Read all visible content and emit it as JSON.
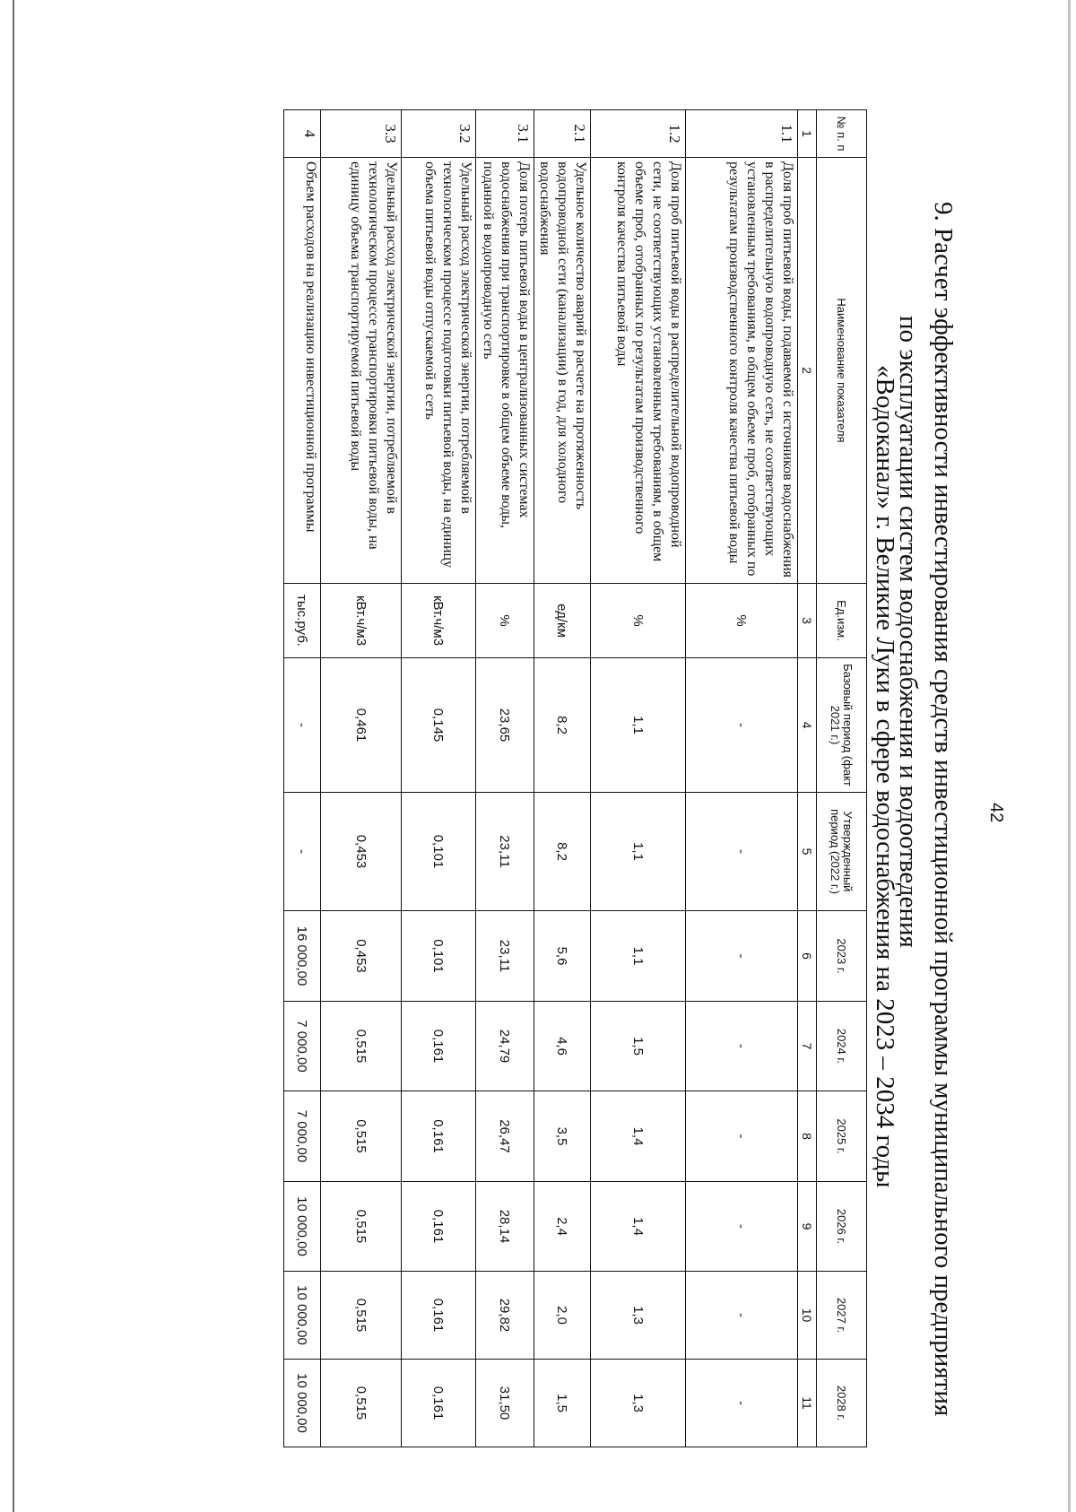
{
  "page_number": "42",
  "title": {
    "line1": "9. Расчет эффективности инвестирования средств инвестиционной программы муниципального предприятия",
    "line2": "по эксплуатации систем водоснабжения и водоотведения",
    "line3": "«Водоканал» г. Великие Луки в сфере водоснабжения на 2023 – 2034 годы"
  },
  "table": {
    "headers": [
      "№ п. п",
      "Наименование показателя",
      "Ед.изм.",
      "Базовый период (факт 2021 г.)",
      "Утвержденный период (2022 г.)",
      "2023 г.",
      "2024 г.",
      "2025 г.",
      "2026 г.",
      "2027 г.",
      "2028 г."
    ],
    "column_numbers": [
      "1",
      "2",
      "3",
      "4",
      "5",
      "6",
      "7",
      "8",
      "9",
      "10",
      "11"
    ],
    "rows": [
      {
        "no": "1.1",
        "name": "Доля проб питьевой воды, подаваемой с источников водоснабжения в распределительную водопроводную сеть, не соответствующих установленным требованиям, в общем объеме проб, отобранных по результатам производственного контроля качества питьевой воды",
        "unit": "%",
        "values": [
          "-",
          "-",
          "-",
          "-",
          "-",
          "-",
          "-",
          "-"
        ]
      },
      {
        "no": "1.2",
        "name": "Доля проб питьевой воды в распределительной водопроводной сети, не соответствующих установленным требованиям, в общем объеме проб, отобранных по результатам производственного контроля качества питьевой воды",
        "unit": "%",
        "values": [
          "1,1",
          "1,1",
          "1,1",
          "1,5",
          "1,4",
          "1,4",
          "1,3",
          "1,3"
        ]
      },
      {
        "no": "2.1",
        "name": "Удельное количество аварий в расчете на протяженность водопроводной сети (канализации) в год, для холодного водоснабжения",
        "unit": "ед/км",
        "values": [
          "8,2",
          "8,2",
          "5,6",
          "4,6",
          "3,5",
          "2,4",
          "2,0",
          "1,5"
        ]
      },
      {
        "no": "3.1",
        "name": "Доля потерь питьевой воды в централизованных системах водоснабжения при транспортировке в общем объеме воды, поданной в водопроводную сеть",
        "unit": "%",
        "values": [
          "23,65",
          "23,11",
          "23,11",
          "24,79",
          "26,47",
          "28,14",
          "29,82",
          "31,50"
        ]
      },
      {
        "no": "3.2",
        "name": "Удельный расход электрической энергии, потребляемой в технологическом процессе подготовки питьевой воды, на единицу объема питьевой воды отпускаемой в сеть",
        "unit": "кВт.ч/м3",
        "values": [
          "0,145",
          "0,101",
          "0,101",
          "0,161",
          "0,161",
          "0,161",
          "0,161",
          "0,161"
        ]
      },
      {
        "no": "3.3",
        "name": "Удельный расход электрической энергии, потребляемой в технологическом процессе транспортировки питьевой воды, на единицу объема транспортируемой питьевой воды",
        "unit": "кВт.ч/м3",
        "values": [
          "0,461",
          "0,453",
          "0,453",
          "0,515",
          "0,515",
          "0,515",
          "0,515",
          "0,515"
        ]
      },
      {
        "no": "4",
        "name": "Объем расходов на реализацию инвестиционной программы",
        "unit": "тыс.руб.",
        "values": [
          "-",
          "-",
          "16 000,00",
          "7 000,00",
          "7 000,00",
          "10 000,00",
          "10 000,00",
          "10 000,00"
        ]
      }
    ]
  }
}
